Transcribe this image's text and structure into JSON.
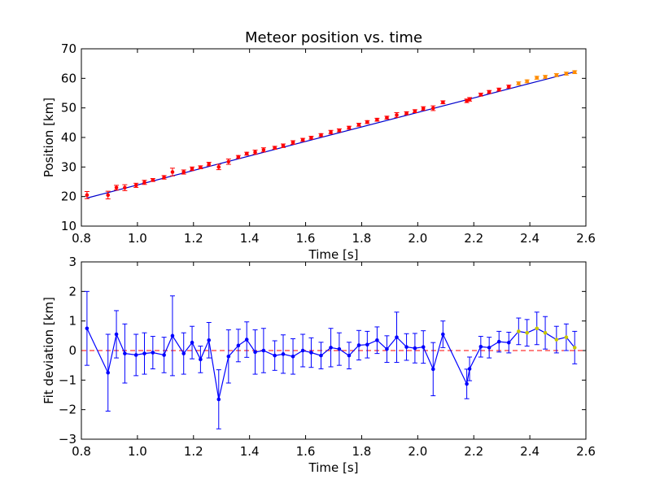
{
  "chart_data": [
    {
      "type": "scatter",
      "title": "Meteor position vs. time",
      "xlabel": "Time [s]",
      "ylabel": "Position [km]",
      "xlim": [
        0.8,
        2.6
      ],
      "ylim": [
        10,
        70
      ],
      "xticks": [
        "0.8",
        "1.0",
        "1.2",
        "1.4",
        "1.6",
        "1.8",
        "2.0",
        "2.2",
        "2.4",
        "2.6"
      ],
      "yticks": [
        "10",
        "20",
        "30",
        "40",
        "50",
        "60",
        "70"
      ],
      "grid": false,
      "colors": {
        "points_main": "#ff0000",
        "points_late": "#ff8c00",
        "fit": "#0000cc"
      },
      "fit_line": {
        "x": [
          0.82,
          2.56
        ],
        "y": [
          19.5,
          62.2
        ]
      },
      "series": [
        {
          "x": [
            0.82,
            0.895,
            0.925,
            0.955,
            0.995,
            1.025,
            1.055,
            1.095,
            1.125,
            1.165,
            1.195,
            1.225,
            1.255,
            1.29,
            1.325,
            1.36,
            1.39,
            1.42,
            1.45,
            1.49,
            1.52,
            1.555,
            1.59,
            1.62,
            1.655,
            1.69,
            1.72,
            1.755,
            1.79,
            1.82,
            1.855,
            1.89,
            1.925,
            1.96,
            1.99,
            2.02,
            2.055,
            2.09,
            2.175,
            2.185,
            2.225,
            2.255,
            2.29,
            2.325
          ],
          "y": [
            20.5,
            20.5,
            23.0,
            23.0,
            23.8,
            24.8,
            25.6,
            26.5,
            28.3,
            28.3,
            29.4,
            29.9,
            31.0,
            30.0,
            31.8,
            33.4,
            34.5,
            35.0,
            35.8,
            36.5,
            37.2,
            38.3,
            39.2,
            39.9,
            40.8,
            41.8,
            42.4,
            43.3,
            44.3,
            45.2,
            46.0,
            46.7,
            47.6,
            48.2,
            48.9,
            49.8,
            49.9,
            51.9,
            52.4,
            52.9,
            54.5,
            55.4,
            56.2,
            57.2
          ],
          "yerr": [
            1.2,
            1.3,
            0.8,
            1.0,
            0.7,
            0.7,
            0.5,
            0.6,
            1.3,
            0.7,
            0.6,
            0.5,
            0.6,
            0.9,
            0.9,
            0.5,
            0.5,
            0.7,
            0.7,
            0.5,
            0.6,
            0.6,
            0.5,
            0.5,
            0.5,
            0.6,
            0.5,
            0.5,
            0.5,
            0.5,
            0.5,
            0.5,
            0.8,
            0.5,
            0.5,
            0.6,
            0.8,
            0.5,
            0.6,
            0.6,
            0.5,
            0.5,
            0.5,
            0.5
          ]
        },
        {
          "x": [
            2.36,
            2.39,
            2.425,
            2.455,
            2.495,
            2.53,
            2.56
          ],
          "y": [
            58.3,
            59.0,
            60.2,
            60.5,
            61.1,
            61.6,
            62.1
          ],
          "yerr": [
            0.5,
            0.5,
            0.5,
            0.5,
            0.5,
            0.5,
            0.5
          ]
        }
      ]
    },
    {
      "type": "line",
      "title": "",
      "xlabel": "Time [s]",
      "ylabel": "Fit deviation [km]",
      "xlim": [
        0.8,
        2.6
      ],
      "ylim": [
        -3,
        3
      ],
      "xticks": [
        "0.8",
        "1.0",
        "1.2",
        "1.4",
        "1.6",
        "1.8",
        "2.0",
        "2.2",
        "2.4",
        "2.6"
      ],
      "yticks": [
        "−3",
        "−2",
        "−1",
        "0",
        "1",
        "2",
        "3"
      ],
      "grid": false,
      "reference_line": {
        "y": 0,
        "style": "dashed",
        "color": "#ff0000"
      },
      "colors": {
        "line": "#0000ff",
        "late_markers": "#c8c800"
      },
      "series": [
        {
          "x": [
            0.82,
            0.895,
            0.925,
            0.955,
            0.995,
            1.025,
            1.055,
            1.095,
            1.125,
            1.165,
            1.195,
            1.225,
            1.255,
            1.29,
            1.325,
            1.36,
            1.39,
            1.42,
            1.45,
            1.49,
            1.52,
            1.555,
            1.59,
            1.62,
            1.655,
            1.69,
            1.72,
            1.755,
            1.79,
            1.82,
            1.855,
            1.89,
            1.925,
            1.96,
            1.99,
            2.02,
            2.055,
            2.09,
            2.175,
            2.185,
            2.225,
            2.255,
            2.29,
            2.325,
            2.36,
            2.39,
            2.425,
            2.455,
            2.495,
            2.53,
            2.56
          ],
          "y": [
            0.75,
            -0.75,
            0.55,
            -0.1,
            -0.15,
            -0.1,
            -0.07,
            -0.15,
            0.5,
            -0.1,
            0.27,
            -0.3,
            0.35,
            -1.65,
            -0.2,
            0.17,
            0.37,
            -0.05,
            0.0,
            -0.17,
            -0.12,
            -0.2,
            0.0,
            -0.07,
            -0.17,
            0.1,
            0.05,
            -0.17,
            0.18,
            0.2,
            0.35,
            0.05,
            0.45,
            0.12,
            0.08,
            0.12,
            -0.63,
            0.55,
            -1.13,
            -0.62,
            0.13,
            0.1,
            0.3,
            0.27,
            0.65,
            0.6,
            0.75,
            0.6,
            0.37,
            0.45,
            0.1
          ],
          "yerr": [
            1.25,
            1.3,
            0.8,
            1.0,
            0.7,
            0.7,
            0.55,
            0.6,
            1.35,
            0.7,
            0.55,
            0.45,
            0.6,
            1.0,
            0.9,
            0.55,
            0.6,
            0.75,
            0.75,
            0.5,
            0.65,
            0.6,
            0.55,
            0.5,
            0.45,
            0.65,
            0.55,
            0.45,
            0.5,
            0.45,
            0.45,
            0.45,
            0.85,
            0.45,
            0.5,
            0.55,
            0.9,
            0.45,
            0.5,
            0.4,
            0.35,
            0.35,
            0.35,
            0.35,
            0.45,
            0.45,
            0.55,
            0.55,
            0.45,
            0.45,
            0.55
          ],
          "late_from_index": 44
        }
      ]
    }
  ]
}
